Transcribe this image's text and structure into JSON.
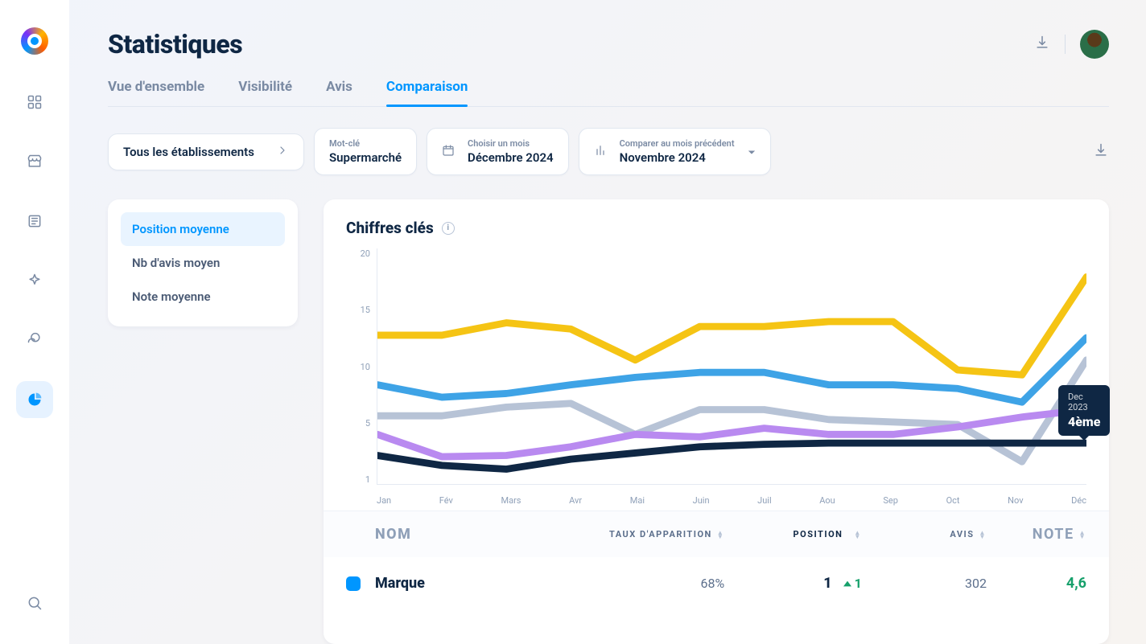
{
  "page": {
    "title": "Statistiques"
  },
  "tabs": [
    {
      "key": "overview",
      "label": "Vue d'ensemble"
    },
    {
      "key": "visibility",
      "label": "Visibilité"
    },
    {
      "key": "reviews",
      "label": "Avis"
    },
    {
      "key": "comparison",
      "label": "Comparaison",
      "active": true
    }
  ],
  "filters": {
    "establishments": {
      "label": "Tous les établissements"
    },
    "keyword": {
      "label": "Mot-clé",
      "value": "Supermarché"
    },
    "month": {
      "label": "Choisir un mois",
      "value": "Décembre 2024"
    },
    "compare": {
      "label": "Comparer au mois précédent",
      "value": "Novembre 2024"
    }
  },
  "metricMenu": [
    {
      "key": "pos",
      "label": "Position moyenne",
      "active": true
    },
    {
      "key": "rev",
      "label": "Nb d'avis moyen"
    },
    {
      "key": "note",
      "label": "Note moyenne"
    }
  ],
  "chart": {
    "title": "Chiffres clés",
    "type": "line",
    "background_color": "#ffffff",
    "grid_color": "#e4eaf3",
    "yaxis": {
      "ticks": [
        20,
        15,
        10,
        5,
        1
      ],
      "min": 1,
      "max": 20
    },
    "xaxis": {
      "labels": [
        "Jan",
        "Fév",
        "Mars",
        "Avr",
        "Mai",
        "Juin",
        "Juil",
        "Aou",
        "Sep",
        "Oct",
        "Nov",
        "Déc"
      ]
    },
    "font": {
      "axis_size": 11,
      "axis_color": "#8fa0b8"
    },
    "line_width": 2.2,
    "series": [
      {
        "name": "yellow",
        "color": "#f5c414",
        "values": [
          13,
          13,
          14,
          13.5,
          11,
          13.7,
          13.7,
          14.1,
          14.1,
          10.2,
          9.8,
          17.7
        ]
      },
      {
        "name": "blue",
        "color": "#3ea3e6",
        "values": [
          9,
          8,
          8.3,
          9,
          9.6,
          10,
          10,
          9,
          9,
          8.7,
          7.6,
          12.8
        ]
      },
      {
        "name": "gray",
        "color": "#b7c3d6",
        "values": [
          6.5,
          6.5,
          7.2,
          7.5,
          5,
          7,
          7,
          6.2,
          6,
          5.8,
          2.8,
          11
        ]
      },
      {
        "name": "purple",
        "color": "#b98af0",
        "values": [
          5,
          3.2,
          3.3,
          4,
          5,
          4.8,
          5.5,
          5,
          5,
          5.6,
          6.4,
          7
        ]
      },
      {
        "name": "navy",
        "color": "#0f2744",
        "values": [
          3.3,
          2.5,
          2.2,
          3,
          3.5,
          4,
          4.2,
          4.3,
          4.3,
          4.3,
          4.3,
          4.3
        ]
      }
    ],
    "tooltip": {
      "dateLabel": "Dec 2023",
      "valueLabel": "4ème",
      "x_index": 11
    }
  },
  "table": {
    "columns": {
      "name": "NOM",
      "taux": "TAUX D'APPARITION",
      "position": "POSITION",
      "avis": "AVIS",
      "note": "NOTE"
    },
    "sort_active": "position",
    "rows": [
      {
        "swatch": "#0096ff",
        "name": "Marque",
        "taux": "68%",
        "position": "1",
        "delta": "1",
        "delta_direction": "up",
        "avis": "302",
        "note": "4,6"
      }
    ]
  },
  "colors": {
    "accent": "#0096ff",
    "text": "#0f2744",
    "muted": "#7a8aa3",
    "positive": "#16a06b"
  }
}
